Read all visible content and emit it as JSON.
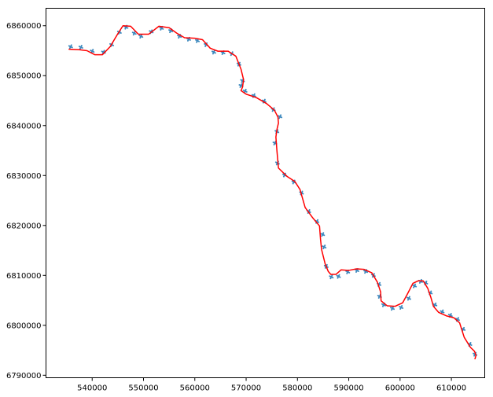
{
  "chart_data": {
    "type": "line",
    "title": "",
    "xlabel": "",
    "ylabel": "",
    "xlim": [
      531000,
      616500
    ],
    "ylim": [
      6789500,
      6863500
    ],
    "grid": false,
    "legend": "none",
    "x_ticks": [
      {
        "value": 540000,
        "label": "540000"
      },
      {
        "value": 550000,
        "label": "550000"
      },
      {
        "value": 560000,
        "label": "560000"
      },
      {
        "value": 570000,
        "label": "570000"
      },
      {
        "value": 580000,
        "label": "580000"
      },
      {
        "value": 590000,
        "label": "590000"
      },
      {
        "value": 600000,
        "label": "600000"
      },
      {
        "value": 610000,
        "label": "610000"
      }
    ],
    "y_ticks": [
      {
        "value": 6790000,
        "label": "6790000"
      },
      {
        "value": 6800000,
        "label": "6800000"
      },
      {
        "value": 6810000,
        "label": "6810000"
      },
      {
        "value": 6820000,
        "label": "6820000"
      },
      {
        "value": 6830000,
        "label": "6830000"
      },
      {
        "value": 6840000,
        "label": "6840000"
      },
      {
        "value": 6850000,
        "label": "6850000"
      },
      {
        "value": 6860000,
        "label": "6860000"
      }
    ],
    "series": [
      {
        "color": "#ff0000",
        "style": "line",
        "x": [
          535500,
          537500,
          539000,
          540500,
          542000,
          543500,
          545000,
          546000,
          547500,
          549000,
          551000,
          553000,
          555000,
          556500,
          558000,
          560000,
          561500,
          563000,
          564500,
          566500,
          568000,
          569000,
          569500,
          569300,
          569000,
          570000,
          572000,
          574000,
          575500,
          576200,
          576300,
          576000,
          575800,
          576000,
          576300,
          578000,
          579500,
          580500,
          581500,
          583000,
          584300,
          584500,
          584700,
          585400,
          586000,
          586500,
          587500,
          588500,
          590000,
          591500,
          593000,
          594500,
          595600,
          596200,
          596300,
          597500,
          599000,
          600500,
          601500,
          602500,
          603500,
          604500,
          605400,
          606000,
          606500,
          607500,
          609000,
          610500,
          611600,
          612500,
          613700,
          614500,
          614800,
          614600
        ],
        "y": [
          6855300,
          6855200,
          6855000,
          6854200,
          6854200,
          6855800,
          6858400,
          6860000,
          6859900,
          6858300,
          6858300,
          6859900,
          6859600,
          6858500,
          6857600,
          6857500,
          6857200,
          6855500,
          6854900,
          6854900,
          6853900,
          6851300,
          6849200,
          6847700,
          6847000,
          6846300,
          6845600,
          6844400,
          6843100,
          6841700,
          6840500,
          6839200,
          6837700,
          6835000,
          6831500,
          6829800,
          6828800,
          6827200,
          6823600,
          6821500,
          6819900,
          6817200,
          6815200,
          6812300,
          6810800,
          6810200,
          6810200,
          6811100,
          6811000,
          6811300,
          6811200,
          6810500,
          6808600,
          6806700,
          6804900,
          6803900,
          6803800,
          6804500,
          6806400,
          6808400,
          6808900,
          6808900,
          6807400,
          6805600,
          6803800,
          6802600,
          6801900,
          6801500,
          6800500,
          6797600,
          6795600,
          6794800,
          6794000,
          6793300
        ]
      },
      {
        "color": "#1f77b4",
        "style": "scatter",
        "x": [
          535800,
          537800,
          540000,
          542200,
          543800,
          545300,
          546600,
          548200,
          549500,
          551500,
          553500,
          555300,
          557000,
          558800,
          560500,
          562200,
          563700,
          565500,
          567200,
          568600,
          569300,
          569000,
          569800,
          571500,
          573500,
          575300,
          576600,
          576000,
          575600,
          576100,
          577500,
          579300,
          580800,
          582200,
          583800,
          584900,
          585200,
          585600,
          586600,
          588000,
          589800,
          591600,
          593300,
          594800,
          595900,
          596000,
          596800,
          598500,
          600200,
          601700,
          602800,
          604000,
          605000,
          605900,
          606800,
          608200,
          609800,
          611200,
          612300,
          613600,
          614600
        ],
        "y": [
          6855800,
          6855700,
          6854900,
          6854700,
          6856200,
          6858700,
          6859700,
          6858500,
          6857900,
          6858800,
          6859500,
          6859000,
          6857900,
          6857300,
          6857000,
          6856200,
          6854700,
          6854600,
          6854400,
          6852300,
          6849000,
          6848000,
          6846900,
          6846000,
          6844900,
          6843200,
          6841800,
          6838800,
          6836500,
          6832500,
          6830100,
          6828700,
          6826500,
          6822800,
          6820800,
          6818200,
          6815700,
          6811800,
          6809700,
          6809800,
          6810700,
          6811000,
          6810800,
          6810000,
          6808200,
          6805800,
          6804100,
          6803400,
          6803600,
          6805400,
          6807900,
          6808800,
          6808500,
          6806500,
          6804100,
          6802700,
          6802000,
          6801200,
          6799200,
          6796200,
          6794200
        ]
      }
    ]
  }
}
